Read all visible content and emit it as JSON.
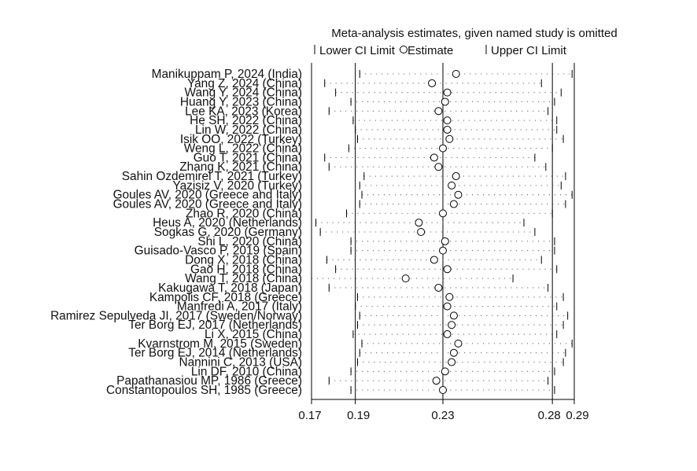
{
  "chart_data": {
    "type": "forest-sensitivity",
    "title": "Meta-analysis estimates, given named study is omitted",
    "legend": [
      {
        "symbol": "|",
        "label": "Lower CI Limit"
      },
      {
        "symbol": "o",
        "label": "Estimate"
      },
      {
        "symbol": "|",
        "label": "Upper CI Limit"
      }
    ],
    "xlim": [
      0.17,
      0.29
    ],
    "xticks": [
      {
        "value": 0.17,
        "label": "0.17"
      },
      {
        "value": 0.19,
        "label": "0.19"
      },
      {
        "value": 0.23,
        "label": "0.23"
      },
      {
        "value": 0.28,
        "label": "0.28"
      },
      {
        "value": 0.29,
        "label": "0.29"
      }
    ],
    "reference_lines": [
      0.19,
      0.23,
      0.28
    ],
    "studies": [
      {
        "label": "Manikuppam P, 2024 (India)",
        "estimate": 0.236,
        "lower": 0.192,
        "upper": 0.289
      },
      {
        "label": "Yang Z, 2024 (China)",
        "estimate": 0.225,
        "lower": 0.176,
        "upper": 0.275
      },
      {
        "label": "Wang Y, 2024 (China)",
        "estimate": 0.232,
        "lower": 0.181,
        "upper": 0.284
      },
      {
        "label": "Huang Y, 2023 (China)",
        "estimate": 0.231,
        "lower": 0.188,
        "upper": 0.281
      },
      {
        "label": "Lee KA, 2023 (Korea)",
        "estimate": 0.228,
        "lower": 0.178,
        "upper": 0.278
      },
      {
        "label": "He SH, 2022 (China)",
        "estimate": 0.232,
        "lower": 0.189,
        "upper": 0.282
      },
      {
        "label": "Lin W, 2022 (China)",
        "estimate": 0.232,
        "lower": 0.19,
        "upper": 0.282
      },
      {
        "label": "Isik OO, 2022 (Turkey)",
        "estimate": 0.233,
        "lower": 0.191,
        "upper": 0.285
      },
      {
        "label": "Weng L, 2022 (China)",
        "estimate": 0.23,
        "lower": 0.187,
        "upper": 0.28
      },
      {
        "label": "Guo T, 2021 (China)",
        "estimate": 0.226,
        "lower": 0.176,
        "upper": 0.272
      },
      {
        "label": "Zhang K, 2021 (China)",
        "estimate": 0.228,
        "lower": 0.178,
        "upper": 0.277
      },
      {
        "label": "Sahin Ozdemirel T, 2021 (Turkey)",
        "estimate": 0.236,
        "lower": 0.194,
        "upper": 0.286
      },
      {
        "label": "Yazisiz V, 2020 (Turkey)",
        "estimate": 0.234,
        "lower": 0.192,
        "upper": 0.284
      },
      {
        "label": "Goules AV, 2020 (Greece and Italy)",
        "estimate": 0.237,
        "lower": 0.193,
        "upper": 0.289
      },
      {
        "label": "Goules AV, 2020 (Greece and Italy)",
        "estimate": 0.235,
        "lower": 0.192,
        "upper": 0.286
      },
      {
        "label": "Zhao R, 2020 (China)",
        "estimate": 0.23,
        "lower": 0.186,
        "upper": 0.28
      },
      {
        "label": "Heus A, 2020 (Netherlands)",
        "estimate": 0.219,
        "lower": 0.172,
        "upper": 0.267
      },
      {
        "label": "Sogkas G, 2020 (Germany)",
        "estimate": 0.22,
        "lower": 0.174,
        "upper": 0.272
      },
      {
        "label": "Shi L, 2020 (China)",
        "estimate": 0.231,
        "lower": 0.188,
        "upper": 0.281
      },
      {
        "label": "Guisado-Vasco P, 2019 (Spain)",
        "estimate": 0.23,
        "lower": 0.188,
        "upper": 0.281
      },
      {
        "label": "Dong X, 2018 (China)",
        "estimate": 0.226,
        "lower": 0.177,
        "upper": 0.275
      },
      {
        "label": "Gao H, 2018 (China)",
        "estimate": 0.232,
        "lower": 0.181,
        "upper": 0.282
      },
      {
        "label": "Wang T, 2018 (China)",
        "estimate": 0.213,
        "lower": 0.17,
        "upper": 0.262
      },
      {
        "label": "Kakugawa T, 2018 (Japan)",
        "estimate": 0.228,
        "lower": 0.178,
        "upper": 0.278
      },
      {
        "label": "Kampolis CF, 2018 (Greece)",
        "estimate": 0.233,
        "lower": 0.191,
        "upper": 0.285
      },
      {
        "label": "Manfredi A, 2017 (Italy)",
        "estimate": 0.232,
        "lower": 0.19,
        "upper": 0.282
      },
      {
        "label": "Ramirez Sepulveda JI, 2017 (Sweden/Norway)",
        "estimate": 0.235,
        "lower": 0.192,
        "upper": 0.287
      },
      {
        "label": "Ter Borg EJ, 2017 (Netherlands)",
        "estimate": 0.234,
        "lower": 0.191,
        "upper": 0.285
      },
      {
        "label": "Li X, 2015 (China)",
        "estimate": 0.232,
        "lower": 0.189,
        "upper": 0.282
      },
      {
        "label": "Kvarnstrom M, 2015 (Sweden)",
        "estimate": 0.237,
        "lower": 0.193,
        "upper": 0.289
      },
      {
        "label": "Ter Borg EJ, 2014 (Netherlands)",
        "estimate": 0.235,
        "lower": 0.192,
        "upper": 0.286
      },
      {
        "label": "Nannini C, 2013 (USA)",
        "estimate": 0.234,
        "lower": 0.191,
        "upper": 0.285
      },
      {
        "label": "Lin DF, 2010 (China)",
        "estimate": 0.231,
        "lower": 0.188,
        "upper": 0.281
      },
      {
        "label": "Papathanasiou MP, 1986 (Greece)",
        "estimate": 0.227,
        "lower": 0.178,
        "upper": 0.278
      },
      {
        "label": "Constantopoulos SH, 1985 (Greece)",
        "estimate": 0.23,
        "lower": 0.188,
        "upper": 0.281
      }
    ]
  }
}
